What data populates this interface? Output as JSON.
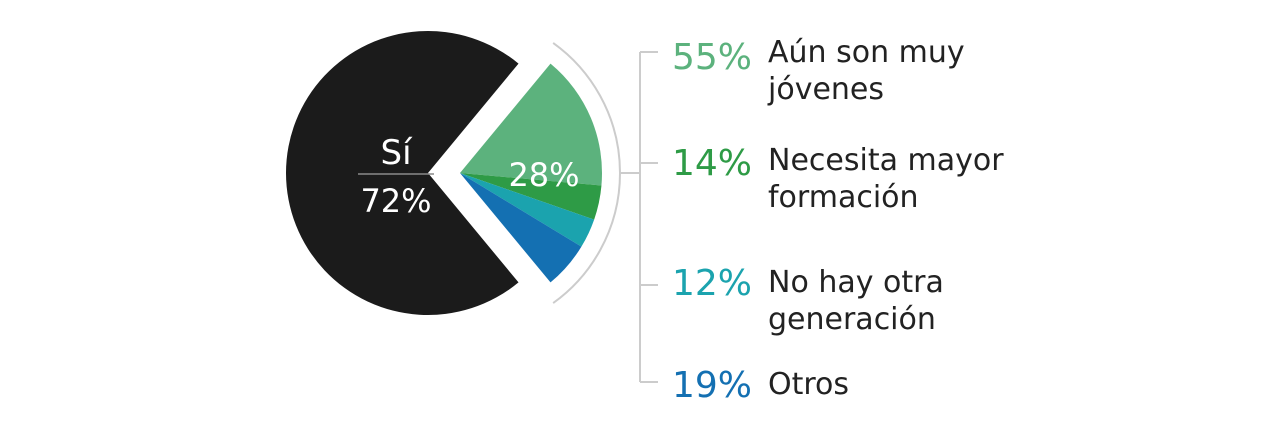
{
  "chart_data": {
    "type": "pie",
    "slices": [
      {
        "label": "Sí",
        "value": 72,
        "value_label": "72%",
        "color": "#1b1b1b"
      },
      {
        "label": "",
        "value": 28,
        "value_label": "28%",
        "color": "#67bb87"
      }
    ],
    "breakdown": {
      "of_slice": "28%",
      "items": [
        {
          "value": 55,
          "value_label": "55%",
          "label": "Aún son muy jóvenes",
          "color": "#5cb27d"
        },
        {
          "value": 14,
          "value_label": "14%",
          "label": "Necesita mayor formación",
          "color": "#2e9b46"
        },
        {
          "value": 12,
          "value_label": "12%",
          "label": "No hay otra generación",
          "color": "#1ba3ae"
        },
        {
          "value": 19,
          "value_label": "19%",
          "label": "Otros",
          "color": "#1470b2"
        }
      ]
    }
  }
}
